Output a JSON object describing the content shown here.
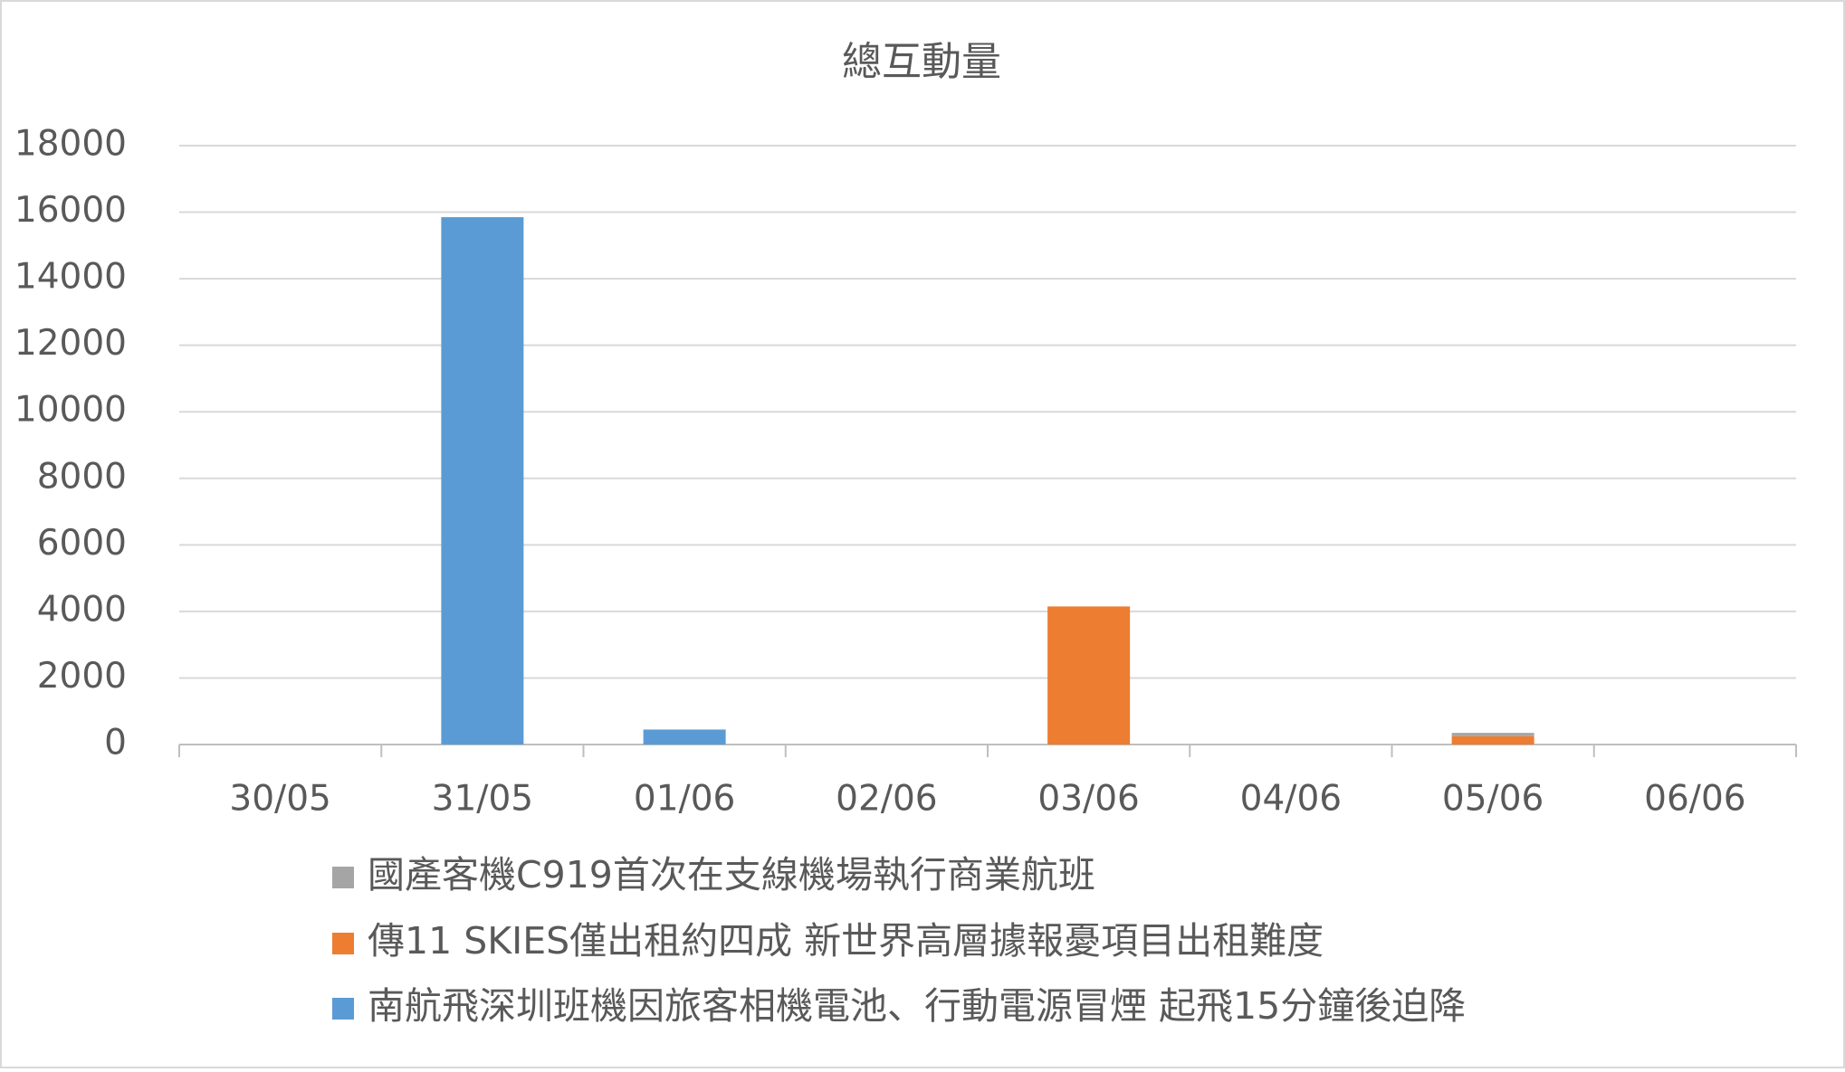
{
  "chart_data": {
    "type": "stacked_bar",
    "title": "總互動量",
    "categories": [
      "30/05",
      "31/05",
      "01/06",
      "02/06",
      "03/06",
      "04/06",
      "05/06",
      "06/06"
    ],
    "series": [
      {
        "name": "南航飛深圳班機因旅客相機電池、行動電源冒煙 起飛15分鐘後迫降",
        "color": "#5b9bd5",
        "values": [
          0,
          15850,
          450,
          0,
          0,
          0,
          0,
          0
        ]
      },
      {
        "name": "傳11 SKIES僅出租約四成 新世界高層據報憂項目出租難度",
        "color": "#ed7d31",
        "values": [
          0,
          0,
          0,
          0,
          4150,
          0,
          250,
          0
        ]
      },
      {
        "name": "國產客機C919首次在支線機場執行商業航班",
        "color": "#a5a5a5",
        "values": [
          0,
          0,
          0,
          0,
          0,
          0,
          100,
          0
        ]
      }
    ],
    "ylim": [
      0,
      18000
    ],
    "yticks": [
      0,
      2000,
      4000,
      6000,
      8000,
      10000,
      12000,
      14000,
      16000,
      18000
    ],
    "grid": true
  }
}
